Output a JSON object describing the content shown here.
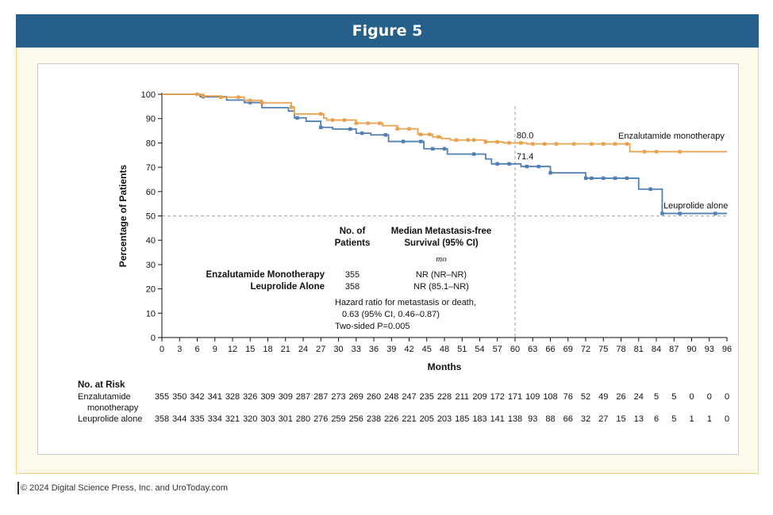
{
  "page": {
    "figure_title": "Figure 5",
    "copyright": "© 2024 Digital Science Press, Inc. and UroToday.com"
  },
  "colors": {
    "enzalutamide": "#e8a14e",
    "leuprolide": "#4f7fb5",
    "title_bar": "#255f8a"
  },
  "chart_data": {
    "type": "line",
    "step": true,
    "xlabel": "Months",
    "ylabel": "Percentage of Patients",
    "xlim": [
      0,
      96
    ],
    "ylim": [
      0,
      100
    ],
    "xticks": [
      0,
      3,
      6,
      9,
      12,
      15,
      18,
      21,
      24,
      27,
      30,
      33,
      36,
      39,
      42,
      45,
      48,
      51,
      54,
      57,
      60,
      63,
      66,
      69,
      72,
      75,
      78,
      81,
      84,
      87,
      90,
      93,
      96
    ],
    "yticks": [
      0,
      10,
      20,
      30,
      40,
      50,
      60,
      70,
      80,
      90,
      100
    ],
    "grid": false,
    "reference_lines": {
      "y": 50,
      "x": 60
    },
    "annotations": [
      {
        "text": "80.0",
        "x": 60,
        "y": 80
      },
      {
        "text": "71.4",
        "x": 60,
        "y": 71.4
      }
    ],
    "series": [
      {
        "name": "Enzalutamide monotherapy",
        "x": [
          0,
          7,
          10,
          14,
          17,
          22,
          22.5,
          27.5,
          28,
          33,
          37.5,
          40,
          43.5,
          46,
          47.5,
          49,
          55,
          58,
          60,
          62,
          79.5,
          96
        ],
        "y": [
          100,
          99.3,
          98.8,
          97.5,
          96.5,
          94.7,
          91.9,
          90.2,
          89.4,
          88.1,
          87.1,
          85.8,
          83.5,
          82.5,
          81.8,
          81.2,
          80.4,
          80.0,
          80.0,
          79.6,
          76.4,
          76.4
        ],
        "censor_x": [
          6,
          7,
          10,
          13,
          15,
          17,
          22,
          27,
          29,
          31,
          33,
          35,
          37,
          40,
          42,
          44,
          45.5,
          47,
          50,
          52,
          53,
          55,
          57,
          59,
          61,
          63,
          65,
          67,
          70,
          73,
          75,
          77,
          79,
          82,
          84,
          88
        ]
      },
      {
        "name": "Leuprolide alone",
        "x": [
          0,
          6.5,
          11,
          14,
          17,
          21.5,
          22.5,
          24.5,
          27,
          29,
          33,
          35.5,
          38.5,
          44.5,
          48.5,
          55,
          56,
          60,
          61,
          66,
          72,
          81,
          85,
          96
        ],
        "y": [
          100,
          99.0,
          97.6,
          96.6,
          94.5,
          93.1,
          90.3,
          88.9,
          86.4,
          85.7,
          84.0,
          83.3,
          80.6,
          77.6,
          75.4,
          73.4,
          71.4,
          71.4,
          70.3,
          67.7,
          65.5,
          61.0,
          51.0,
          51.0
        ],
        "censor_x": [
          7,
          15,
          23,
          27,
          32,
          34,
          38,
          41,
          44,
          46,
          48,
          53,
          57,
          59,
          62,
          64,
          66,
          72,
          73,
          75,
          77,
          79,
          83,
          85,
          88,
          94
        ]
      }
    ],
    "series_labels": {
      "enzalutamide": "Enzalutamide monotherapy",
      "leuprolide": "Leuprolide alone"
    },
    "inset_table": {
      "col1_header": [
        "No. of",
        "Patients"
      ],
      "col2_header": [
        "Median Metastasis-free",
        "Survival (95% CI)"
      ],
      "unit": "mo",
      "rows": [
        {
          "name": "Enzalutamide Monotherapy",
          "n": "355",
          "median": "NR (NR–NR)"
        },
        {
          "name": "Leuprolide Alone",
          "n": "358",
          "median": "NR (85.1–NR)"
        }
      ],
      "hazard_lines": [
        "Hazard ratio for metastasis or death,",
        "0.63 (95% CI, 0.46–0.87)",
        "Two-sided P=0.005"
      ]
    },
    "at_risk": {
      "title": "No. at Risk",
      "rows": [
        {
          "label": [
            "Enzalutamide",
            "monotherapy"
          ],
          "values": [
            "355",
            "350",
            "342",
            "341",
            "328",
            "326",
            "309",
            "309",
            "287",
            "287",
            "273",
            "269",
            "260",
            "248",
            "247",
            "235",
            "228",
            "211",
            "209",
            "172",
            "171",
            "109",
            "108",
            "76",
            "52",
            "49",
            "26",
            "24",
            "5",
            "5",
            "0",
            "0",
            "0"
          ]
        },
        {
          "label": [
            "Leuprolide alone"
          ],
          "values": [
            "358",
            "344",
            "335",
            "334",
            "321",
            "320",
            "303",
            "301",
            "280",
            "276",
            "259",
            "256",
            "238",
            "226",
            "221",
            "205",
            "203",
            "185",
            "183",
            "141",
            "138",
            "93",
            "88",
            "66",
            "32",
            "27",
            "15",
            "13",
            "6",
            "5",
            "1",
            "1",
            "0"
          ]
        }
      ]
    }
  }
}
